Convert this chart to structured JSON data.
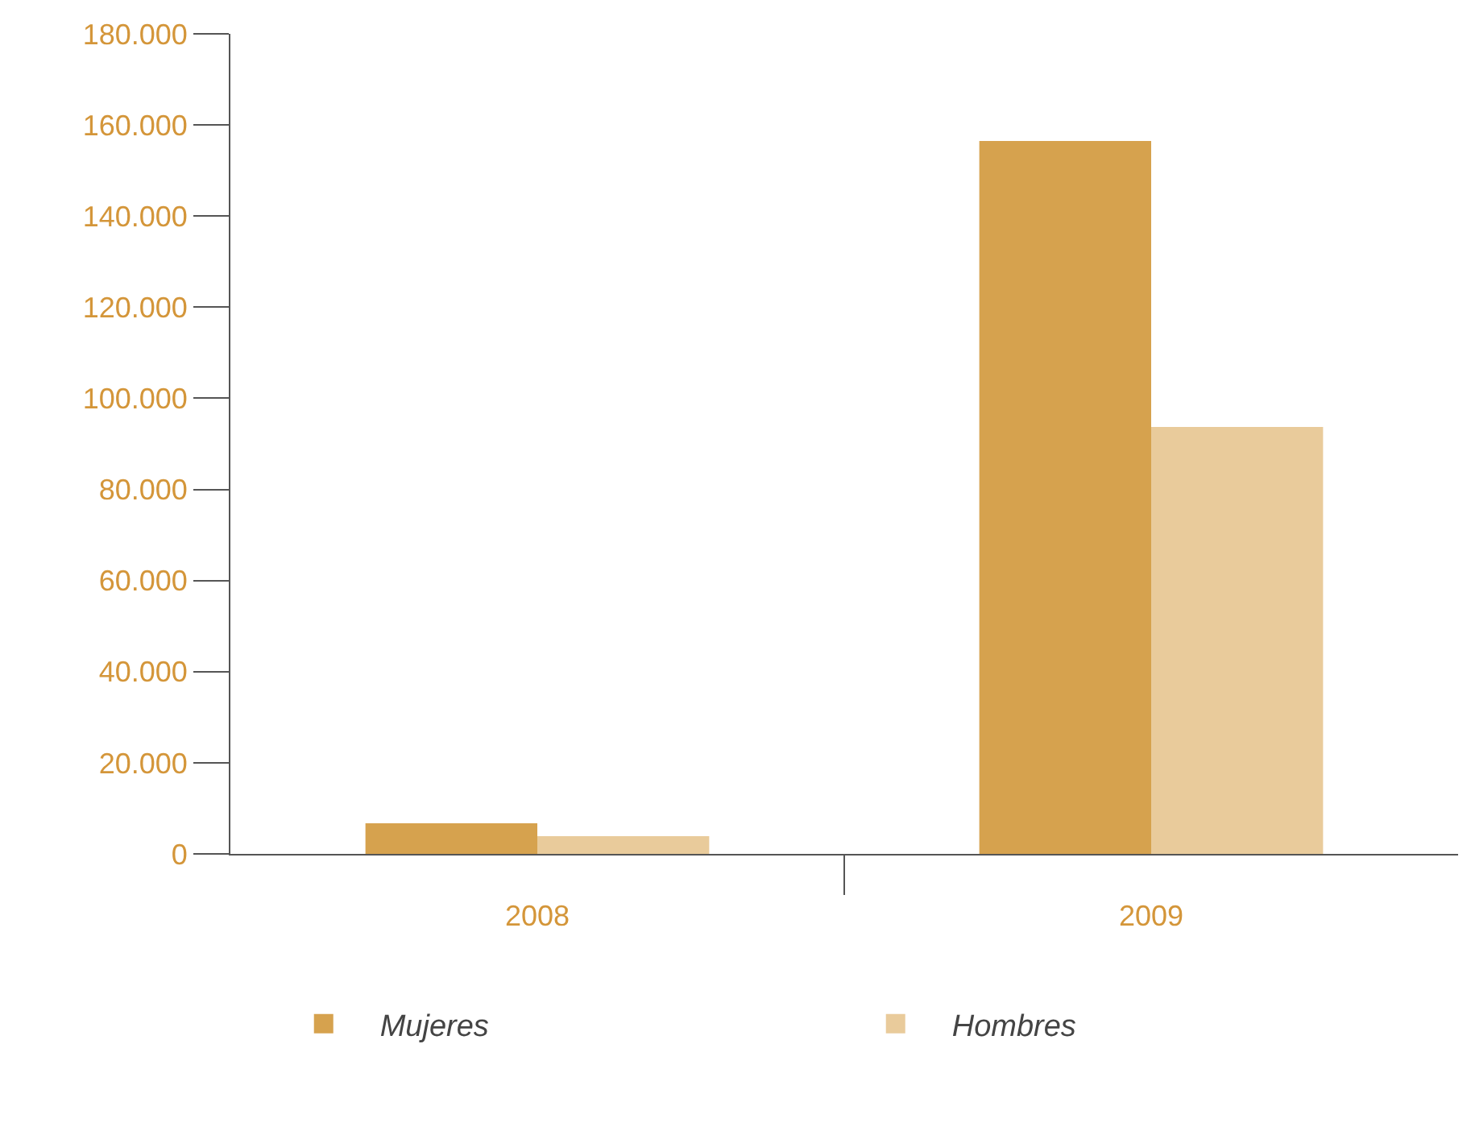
{
  "chart_data": {
    "type": "bar",
    "categories": [
      "2008",
      "2009"
    ],
    "series": [
      {
        "name": "Mujeres",
        "color": "#d6a24e",
        "values": [
          6700,
          156500
        ]
      },
      {
        "name": "Hombres",
        "color": "#e9cb9b",
        "values": [
          3900,
          93700
        ]
      }
    ],
    "ylim": [
      0,
      180000
    ],
    "yticks": [
      {
        "value": 0,
        "label": "0"
      },
      {
        "value": 20000,
        "label": "20.000"
      },
      {
        "value": 40000,
        "label": "40.000"
      },
      {
        "value": 60000,
        "label": "60.000"
      },
      {
        "value": 80000,
        "label": "80.000"
      },
      {
        "value": 100000,
        "label": "100.000"
      },
      {
        "value": 120000,
        "label": "120.000"
      },
      {
        "value": 140000,
        "label": "140.000"
      },
      {
        "value": 160000,
        "label": "160.000"
      },
      {
        "value": 180000,
        "label": "180.000"
      }
    ],
    "legend": "bottom"
  }
}
